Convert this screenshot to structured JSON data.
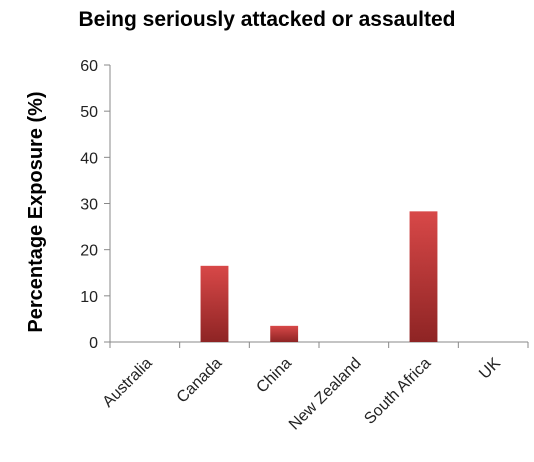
{
  "chart_data": {
    "type": "bar",
    "title": "Being seriously attacked or assaulted",
    "xlabel": "",
    "ylabel": "Percentage Exposure (%)",
    "categories": [
      "Australia",
      "Canada",
      "China",
      "New Zealand",
      "South Africa",
      "UK"
    ],
    "values": [
      0,
      16.5,
      3.5,
      0,
      28.3,
      0
    ],
    "ylim": [
      0,
      60
    ],
    "yticks": [
      0,
      10,
      20,
      30,
      40,
      50,
      60
    ],
    "grid": false,
    "legend": "none",
    "bar_color": "#c0393b"
  }
}
